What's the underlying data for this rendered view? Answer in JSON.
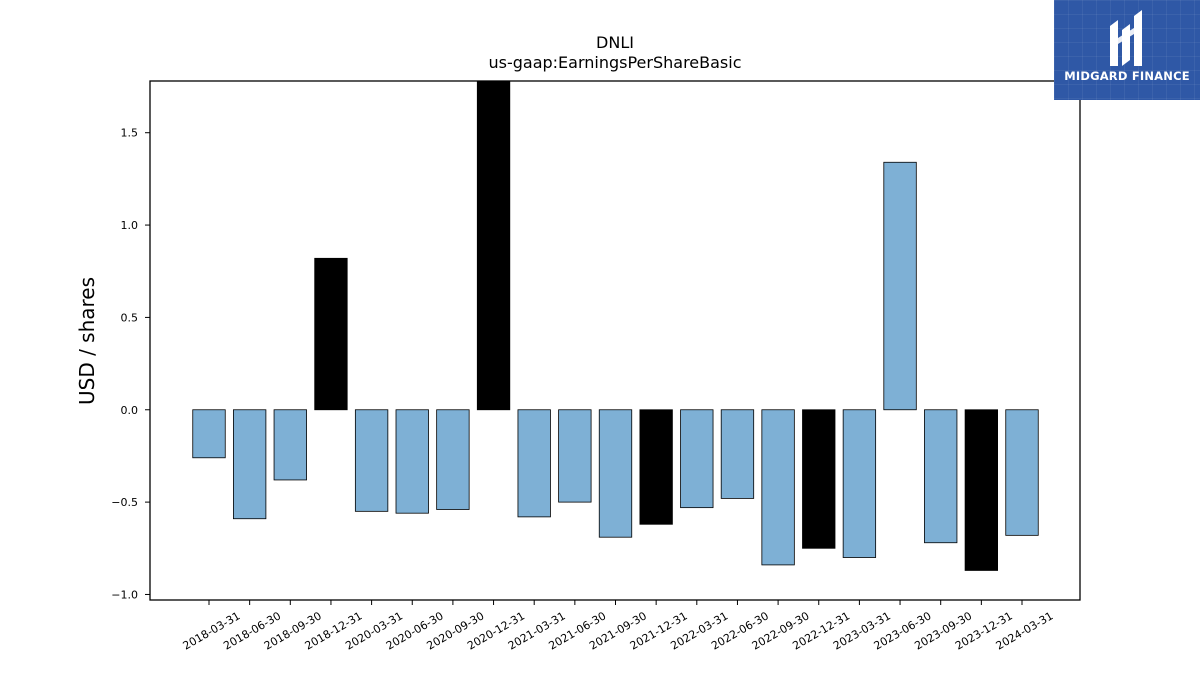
{
  "brand": {
    "name": "MIDGARD FINANCE",
    "logo_icon": "midgard-logo-icon",
    "color": "#2f58a6"
  },
  "colors": {
    "positive_bar": "#7eb0d5",
    "highlight_bar": "#000000",
    "edge": "#000000"
  },
  "chart_data": {
    "type": "bar",
    "title": "DNLI",
    "subtitle": "us-gaap:EarningsPerShareBasic",
    "xlabel": "",
    "ylabel": "USD / shares",
    "ylim": [
      -1.03,
      1.78
    ],
    "yticks": [
      -1.0,
      -0.5,
      0.0,
      0.5,
      1.0,
      1.5
    ],
    "ytick_labels": [
      "−1.0",
      "−0.5",
      "0.0",
      "0.5",
      "1.0",
      "1.5"
    ],
    "grid": false,
    "legend": "none",
    "categories": [
      "2018-03-31",
      "2018-06-30",
      "2018-09-30",
      "2018-12-31",
      "2020-03-31",
      "2020-06-30",
      "2020-09-30",
      "2020-12-31",
      "2021-03-31",
      "2021-06-30",
      "2021-09-30",
      "2021-12-31",
      "2022-03-31",
      "2022-06-30",
      "2022-09-30",
      "2022-12-31",
      "2023-03-31",
      "2023-06-30",
      "2023-09-30",
      "2023-12-31",
      "2024-03-31"
    ],
    "values": [
      -0.26,
      -0.59,
      -0.38,
      0.82,
      -0.55,
      -0.56,
      -0.54,
      1.78,
      -0.58,
      -0.5,
      -0.69,
      -0.62,
      -0.53,
      -0.48,
      -0.84,
      -0.75,
      -0.8,
      1.34,
      -0.72,
      -0.87,
      -0.68
    ],
    "highlight": [
      false,
      false,
      false,
      true,
      false,
      false,
      false,
      true,
      false,
      false,
      false,
      true,
      false,
      false,
      false,
      true,
      false,
      false,
      false,
      true,
      false
    ]
  }
}
